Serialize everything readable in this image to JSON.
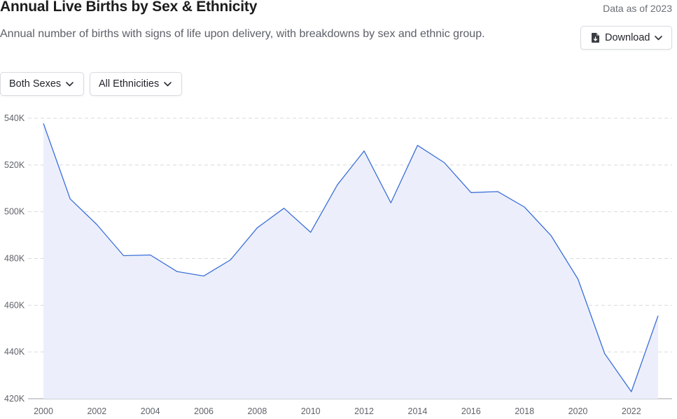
{
  "header": {
    "title": "Annual Live Births by Sex & Ethnicity",
    "as_of": "Data as of 2023",
    "subtitle": "Annual number of births with signs of life upon delivery, with breakdowns by sex and ethnic group.",
    "download_label": "Download"
  },
  "filters": {
    "sex": "Both Sexes",
    "ethnicity": "All Ethnicities"
  },
  "icons": {
    "download": "file-download-icon",
    "dropdown": "chevron-down-icon"
  },
  "colors": {
    "line": "#3b6fd8",
    "area": "#eceffb",
    "grid": "#d7d9dd"
  },
  "chart_data": {
    "type": "area",
    "title": "",
    "xlabel": "",
    "ylabel": "",
    "x": [
      2000,
      2001,
      2002,
      2003,
      2004,
      2005,
      2006,
      2007,
      2008,
      2009,
      2010,
      2011,
      2012,
      2013,
      2014,
      2015,
      2016,
      2017,
      2018,
      2019,
      2020,
      2021,
      2022,
      2023
    ],
    "y": [
      537800,
      505500,
      494500,
      481200,
      481500,
      474400,
      472500,
      479400,
      493100,
      501500,
      491200,
      511500,
      526000,
      503800,
      528400,
      521000,
      508200,
      508600,
      502000,
      489700,
      471200,
      439300,
      423000,
      455500
    ],
    "x_ticks": [
      "2000",
      "2002",
      "2004",
      "2006",
      "2008",
      "2010",
      "2012",
      "2014",
      "2016",
      "2018",
      "2020",
      "2022"
    ],
    "y_ticks": [
      "420K",
      "440K",
      "460K",
      "480K",
      "500K",
      "520K",
      "540K"
    ],
    "ylim": [
      420000,
      540000
    ],
    "xlim": [
      2000,
      2023
    ],
    "grid": "horizontal dashed",
    "legend": "none"
  }
}
